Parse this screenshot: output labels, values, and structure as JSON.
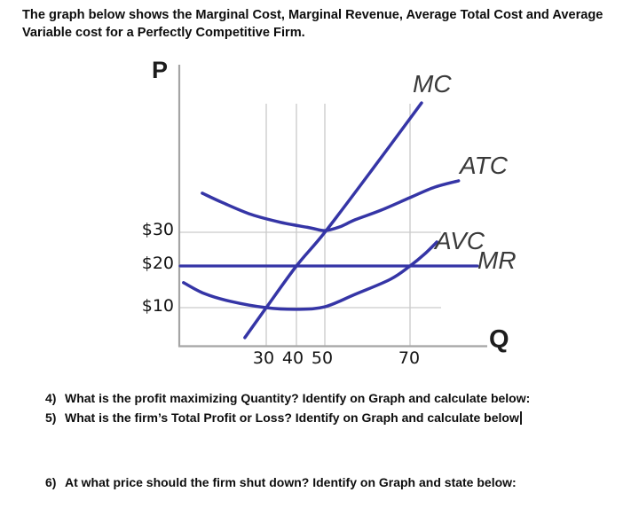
{
  "intro": {
    "line1": "The graph below shows the Marginal Cost, Marginal Revenue, Average Total Cost and Average",
    "line2": "Variable cost for a Perfectly Competitive Firm."
  },
  "questions": [
    {
      "num": "4)",
      "text": "What is the profit maximizing Quantity? Identify on Graph and calculate below:"
    },
    {
      "num": "5)",
      "text": "What is the firm’s Total Profit or Loss? Identify on Graph and calculate below"
    },
    {
      "num": "6)",
      "text": "At what price should the firm shut down? Identify on Graph and state below:"
    }
  ],
  "chart_data": {
    "type": "line",
    "title": "Marginal Cost, Marginal Revenue, Average Total Cost and Average Variable Cost for a Perfectly Competitive Firm",
    "xlabel": "Q",
    "ylabel": "P",
    "x_ticks": [
      {
        "q": 30,
        "label": "30"
      },
      {
        "q": 40,
        "label": "40"
      },
      {
        "q": 50,
        "label": "50"
      },
      {
        "q": 70,
        "label": "70"
      }
    ],
    "y_ticks": [
      {
        "v": 30,
        "label": "$30"
      },
      {
        "v": 20,
        "label": "$20"
      },
      {
        "v": 10,
        "label": "$10"
      }
    ],
    "grid": {
      "vertical_at_q": [
        30,
        40,
        50,
        70
      ],
      "horizontal_at_v": [
        30,
        10
      ]
    },
    "series": [
      {
        "name": "MC",
        "points": [
          [
            22.9,
            2.8
          ],
          [
            30,
            10
          ],
          [
            40,
            20
          ],
          [
            50,
            30
          ],
          [
            61.3,
            48.9
          ],
          [
            72.7,
            68.4
          ]
        ]
      },
      {
        "name": "ATC",
        "points": [
          [
            8.8,
            41.6
          ],
          [
            15.3,
            38.9
          ],
          [
            25,
            35.3
          ],
          [
            35,
            32.9
          ],
          [
            45,
            31.3
          ],
          [
            50,
            30.5
          ],
          [
            53.5,
            31.6
          ],
          [
            57.1,
            33.7
          ],
          [
            63.3,
            36.6
          ],
          [
            70,
            40.3
          ],
          [
            75.8,
            43.4
          ],
          [
            81.4,
            45.3
          ]
        ]
      },
      {
        "name": "AVC",
        "points": [
          [
            2.6,
            16
          ],
          [
            9.4,
            13.4
          ],
          [
            18.2,
            11.5
          ],
          [
            30,
            10
          ],
          [
            40,
            9.6
          ],
          [
            50,
            10.2
          ],
          [
            57.1,
            13.2
          ],
          [
            65.4,
            16.8
          ],
          [
            70,
            20
          ],
          [
            73.3,
            23.4
          ],
          [
            76.3,
            27.1
          ]
        ]
      },
      {
        "name": "MR",
        "points": [
          [
            1.5,
            20
          ],
          [
            85.8,
            20
          ]
        ]
      }
    ],
    "axis_map": {
      "q_anchors": [
        [
          30,
          300
        ],
        [
          40,
          334
        ],
        [
          50,
          366
        ],
        [
          70,
          462
        ]
      ],
      "p_anchors": [
        [
          10,
          347
        ],
        [
          20,
          300
        ],
        [
          30,
          262
        ]
      ]
    },
    "colors": {
      "curve": "#3535a6",
      "grid": "#cacaca",
      "axis": "#a5a5a5"
    },
    "legend_position": "curve-end-labels",
    "notes": {
      "mr_is_horizontal_at": 20,
      "mc_crosses_mr_at_q": 40,
      "atc_minimum": {
        "q": 50,
        "price": 30
      },
      "avc_minimum_price": 10,
      "avc_crosses_mr_at_q": 70
    }
  }
}
